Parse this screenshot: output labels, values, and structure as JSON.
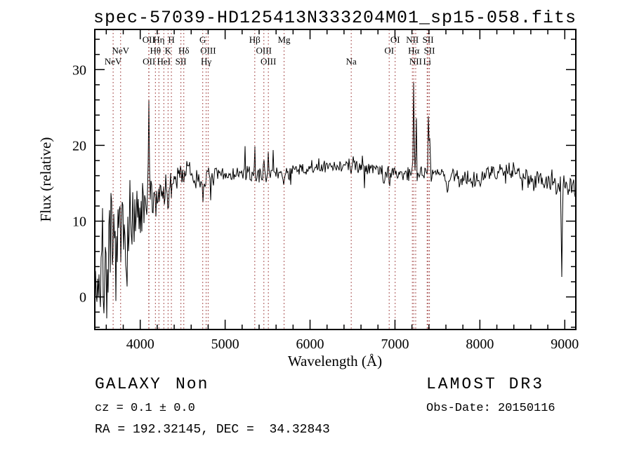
{
  "title": "spec-57039-HD125413N333204M01_sp15-058.fits",
  "axes": {
    "xlabel": "Wavelength (Å)",
    "ylabel": "Flux (relative)",
    "x_ticks": [
      4000,
      5000,
      6000,
      7000,
      8000,
      9000
    ],
    "y_ticks": [
      0,
      10,
      20,
      30
    ],
    "x_minor_step": 200,
    "y_minor_step": 2
  },
  "footer": {
    "class_label": "GALAXY",
    "subclass_label": "Non",
    "cz_text": "cz = 0.1 ± 0.0",
    "ra_dec_text": "RA = 192.32145, DEC =  34.32843",
    "survey_text": "LAMOST DR3",
    "obs_date_text": "Obs-Date: 20150116"
  },
  "colors": {
    "background": "#ffffff",
    "spectrum": "#000000",
    "axis": "#000000",
    "line_marker": "#993333"
  },
  "chart_data": {
    "type": "line",
    "title": "spec-57039-HD125413N333204M01_sp15-058.fits",
    "xlabel": "Wavelength (Å)",
    "ylabel": "Flux (relative)",
    "xlim": [
      3465,
      9130
    ],
    "ylim": [
      -4.3,
      35.3
    ],
    "grid": false,
    "legend": "none",
    "noise_seed": 7,
    "line_markers": [
      {
        "label": "NeV",
        "row": 3,
        "wavelength": 3681
      },
      {
        "label": "NeV",
        "row": 2,
        "wavelength": 3769
      },
      {
        "label": "OII",
        "row": 1,
        "wavelength": 4100
      },
      {
        "label": "OII",
        "row": 3,
        "wavelength": 4103
      },
      {
        "label": "Hθ",
        "row": 2,
        "wavelength": 4179
      },
      {
        "label": "Hη",
        "row": 1,
        "wavelength": 4220
      },
      {
        "label": "HeI",
        "row": 3,
        "wavelength": 4278
      },
      {
        "label": "K",
        "row": 2,
        "wavelength": 4328
      },
      {
        "label": "H",
        "row": 1,
        "wavelength": 4367
      },
      {
        "label": "SII",
        "row": 3,
        "wavelength": 4479
      },
      {
        "label": "Hδ",
        "row": 2,
        "wavelength": 4513
      },
      {
        "label": "G",
        "row": 1,
        "wavelength": 4736
      },
      {
        "label": "Hγ",
        "row": 3,
        "wavelength": 4776
      },
      {
        "label": "OIII",
        "row": 2,
        "wavelength": 4800
      },
      {
        "label": "Hβ",
        "row": 1,
        "wavelength": 5349
      },
      {
        "label": "OIII",
        "row": 2,
        "wavelength": 5456
      },
      {
        "label": "OIII",
        "row": 3,
        "wavelength": 5509
      },
      {
        "label": "Mg",
        "row": 1,
        "wavelength": 5694
      },
      {
        "label": "Na",
        "row": 3,
        "wavelength": 6485
      },
      {
        "label": "OI",
        "row": 2,
        "wavelength": 6932
      },
      {
        "label": "OI",
        "row": 1,
        "wavelength": 7002
      },
      {
        "label": "NII",
        "row": 1,
        "wavelength": 7205
      },
      {
        "label": "Hα",
        "row": 2,
        "wavelength": 7221
      },
      {
        "label": "NII",
        "row": 3,
        "wavelength": 7244
      },
      {
        "label": "Li",
        "row": 3,
        "wavelength": 7379
      },
      {
        "label": "SII",
        "row": 1,
        "wavelength": 7390
      },
      {
        "label": "SII",
        "row": 2,
        "wavelength": 7406
      }
    ],
    "continuum": [
      [
        3465,
        2.2
      ],
      [
        3550,
        3.2
      ],
      [
        3650,
        4.8
      ],
      [
        3750,
        6.5
      ],
      [
        3850,
        8.2
      ],
      [
        3950,
        9.6
      ],
      [
        4050,
        11.0
      ],
      [
        4150,
        12.8
      ],
      [
        4250,
        14.0
      ],
      [
        4350,
        14.6
      ],
      [
        4450,
        16.2
      ],
      [
        4550,
        16.8
      ],
      [
        4650,
        15.4
      ],
      [
        4750,
        15.6
      ],
      [
        4850,
        15.9
      ],
      [
        4950,
        16.0
      ],
      [
        5150,
        16.2
      ],
      [
        5350,
        16.1
      ],
      [
        5550,
        16.2
      ],
      [
        5750,
        16.5
      ],
      [
        5950,
        16.8
      ],
      [
        6150,
        17.0
      ],
      [
        6350,
        17.3
      ],
      [
        6550,
        17.6
      ],
      [
        6750,
        17.1
      ],
      [
        6950,
        16.3
      ],
      [
        7150,
        16.3
      ],
      [
        7350,
        16.4
      ],
      [
        7550,
        16.2
      ],
      [
        7750,
        15.8
      ],
      [
        7950,
        15.6
      ],
      [
        8150,
        16.3
      ],
      [
        8350,
        16.9
      ],
      [
        8550,
        16.1
      ],
      [
        8750,
        15.3
      ],
      [
        8950,
        14.6
      ],
      [
        9130,
        14.1
      ]
    ],
    "noise_profile": [
      [
        3465,
        4.5
      ],
      [
        3600,
        4.0
      ],
      [
        3750,
        3.2
      ],
      [
        3900,
        2.6
      ],
      [
        4050,
        2.0
      ],
      [
        4200,
        1.3
      ],
      [
        4400,
        0.9
      ],
      [
        4700,
        0.65
      ],
      [
        5000,
        0.55
      ],
      [
        5500,
        0.5
      ],
      [
        6000,
        0.5
      ],
      [
        6500,
        0.5
      ],
      [
        7000,
        0.55
      ],
      [
        7500,
        0.6
      ],
      [
        8000,
        0.6
      ],
      [
        8500,
        0.7
      ],
      [
        9000,
        0.85
      ],
      [
        9130,
        0.9
      ]
    ],
    "features": {
      "emission": [
        [
          3762,
          4.5,
          3
        ],
        [
          3880,
          3.0,
          2.5
        ],
        [
          4100,
          16.0,
          5
        ],
        [
          5235,
          4.5,
          2.5
        ],
        [
          5349,
          2.8,
          4
        ],
        [
          5456,
          1.6,
          4
        ],
        [
          5509,
          4.5,
          4
        ],
        [
          5565,
          2.5,
          2.5
        ],
        [
          6105,
          2.2,
          2.5
        ],
        [
          6330,
          2.0,
          2.2
        ],
        [
          7221,
          13.0,
          5
        ],
        [
          7250,
          9.5,
          4
        ],
        [
          7395,
          8.5,
          5
        ],
        [
          7412,
          5.5,
          4
        ]
      ],
      "absorption": [
        [
          4328,
          4.0,
          4
        ],
        [
          4367,
          3.2,
          4
        ],
        [
          4430,
          2.0,
          3
        ],
        [
          4513,
          2.2,
          4
        ],
        [
          4736,
          2.8,
          6
        ],
        [
          4830,
          3.0,
          2.5
        ],
        [
          5694,
          1.5,
          7
        ],
        [
          5770,
          3.0,
          2.5
        ],
        [
          6485,
          2.2,
          5
        ],
        [
          6640,
          3.0,
          2.5
        ],
        [
          6870,
          1.6,
          8
        ],
        [
          6935,
          3.5,
          3
        ],
        [
          7620,
          2.6,
          9
        ],
        [
          7760,
          2.5,
          2.5
        ],
        [
          8500,
          1.5,
          7
        ],
        [
          8630,
          2.8,
          2.5
        ],
        [
          8965,
          12.0,
          6
        ]
      ]
    }
  }
}
